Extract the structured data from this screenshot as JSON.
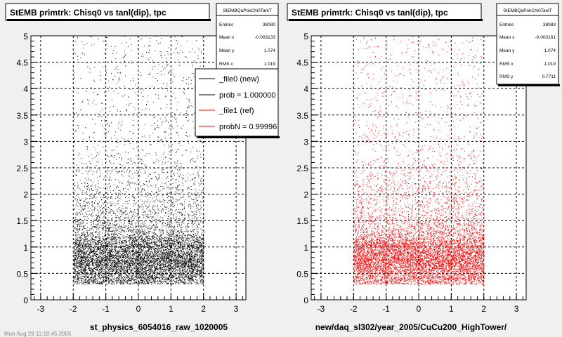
{
  "footer_fragment": "Mon Aug 29 11:18:45 2005",
  "chart_data": [
    {
      "type": "scatter",
      "title": "StEMB primtrk: Chisq0 vs tanl(dip), tpc",
      "xlabel": "st_physics_6054016_raw_1020005",
      "ylabel": "",
      "xlim": [
        -3.3,
        3.3
      ],
      "ylim": [
        0,
        5
      ],
      "x_ticks": [
        "-3",
        "-2",
        "-1",
        "0",
        "1",
        "2",
        "3"
      ],
      "y_ticks": [
        "0",
        "0.5",
        "1",
        "1.5",
        "2",
        "2.5",
        "3",
        "3.5",
        "4",
        "4.5",
        "5"
      ],
      "grid": true,
      "marker_color": "#000000",
      "distribution": {
        "x_range": [
          -2.0,
          2.0
        ],
        "core_y_range": [
          0.3,
          1.3
        ],
        "y_peak": 0.75,
        "tail_y_max": 5
      },
      "stats": {
        "name": "StEMBQaPokChi0TanlT",
        "rows": [
          {
            "label": "Entries",
            "value": "38080"
          },
          {
            "label": "Mean x",
            "value": "-0.003133"
          },
          {
            "label": "Mean y",
            "value": "1.074"
          },
          {
            "label": "RMS x",
            "value": "1.019"
          }
        ]
      },
      "legend": {
        "placement": "top-right",
        "entries": [
          {
            "label": "_file0 (new)",
            "color": "#000000"
          },
          {
            "label": "prob = 1.000000",
            "color": "#000000"
          },
          {
            "label": "_file1 (ref)",
            "color": "#ff0000"
          },
          {
            "label": "probN = 0.99996",
            "color": "#ff0000"
          }
        ]
      }
    },
    {
      "type": "scatter",
      "title": "StEMB primtrk: Chisq0 vs tanl(dip), tpc",
      "xlabel": "new/daq_sl302/year_2005/CuCu200_HighTower/",
      "ylabel": "",
      "xlim": [
        -3.3,
        3.3
      ],
      "ylim": [
        0,
        5
      ],
      "x_ticks": [
        "-3",
        "-2",
        "-1",
        "0",
        "1",
        "2",
        "3"
      ],
      "y_ticks": [
        "0",
        "0.5",
        "1",
        "1.5",
        "2",
        "2.5",
        "3",
        "3.5",
        "4",
        "4.5",
        "5"
      ],
      "grid": true,
      "marker_color": "#ff0000",
      "distribution": {
        "x_range": [
          -2.0,
          2.0
        ],
        "core_y_range": [
          0.3,
          1.3
        ],
        "y_peak": 0.75,
        "tail_y_max": 5
      },
      "stats": {
        "name": "StEMBQaPokChi0TanlT",
        "rows": [
          {
            "label": "Entries",
            "value": "38083"
          },
          {
            "label": "Mean x",
            "value": "-0.003161"
          },
          {
            "label": "Mean y",
            "value": "1.074"
          },
          {
            "label": "RMS x",
            "value": "1.019"
          },
          {
            "label": "RMS y",
            "value": "0.7711"
          }
        ]
      }
    }
  ]
}
